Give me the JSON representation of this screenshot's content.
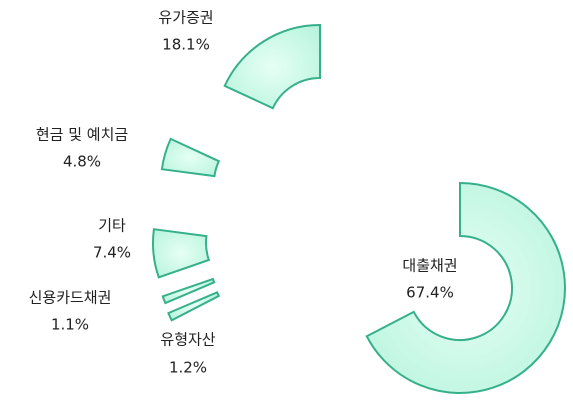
{
  "chart_data": {
    "type": "donut",
    "categories": [
      "대출채권",
      "유형자산",
      "신용카드채권",
      "기타",
      "현금 및 예치금",
      "유가증권"
    ],
    "values": [
      67.4,
      1.2,
      1.1,
      7.4,
      4.8,
      18.1
    ],
    "value_labels": [
      "67.4%",
      "1.2%",
      "1.1%",
      "7.4%",
      "4.8%",
      "18.1%"
    ],
    "color": "#b5f3dc"
  }
}
